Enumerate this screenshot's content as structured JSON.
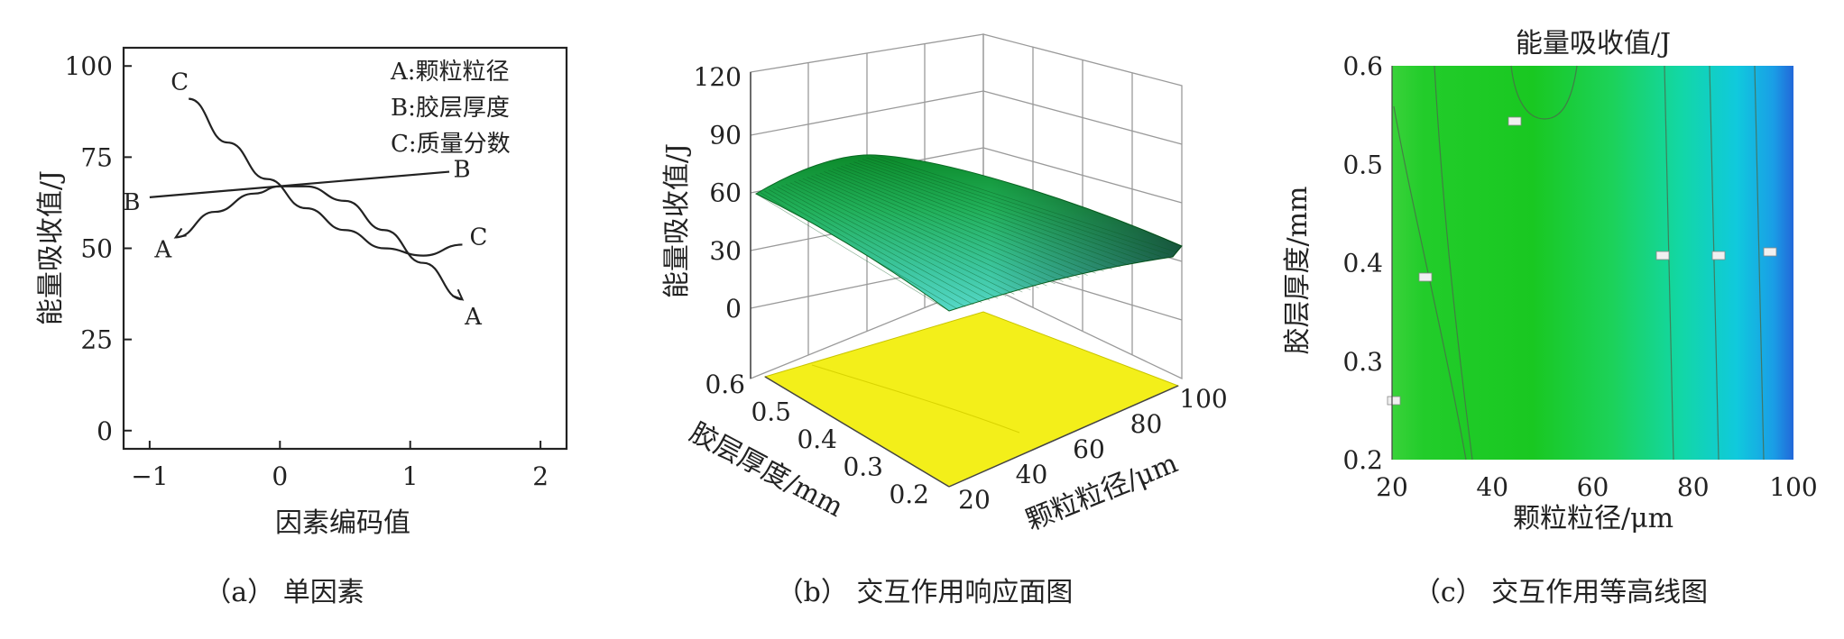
{
  "chart_data": [
    {
      "type": "line",
      "xlabel": "因素编码值",
      "ylabel": "能量吸收值/J",
      "xlim": [
        -1.2,
        2.2
      ],
      "ylim": [
        -5,
        105
      ],
      "xticks": [
        "−1",
        "0",
        "1",
        "2"
      ],
      "yticks": [
        "0",
        "25",
        "50",
        "75",
        "100"
      ],
      "legend": [
        "A:颗粒粒径",
        "B:胶层厚度",
        "C:质量分数"
      ],
      "series": [
        {
          "name": "A",
          "x": [
            -0.8,
            -0.5,
            -0.2,
            0.0,
            0.2,
            0.5,
            0.8,
            1.1,
            1.4
          ],
          "y": [
            53,
            60,
            65,
            67,
            67,
            63,
            55,
            46,
            36
          ],
          "end_labels": [
            "A",
            "A"
          ]
        },
        {
          "name": "B",
          "x": [
            -1.0,
            1.3
          ],
          "y": [
            64,
            71
          ],
          "end_labels": [
            "B",
            "B"
          ]
        },
        {
          "name": "C",
          "x": [
            -0.7,
            -0.4,
            -0.1,
            0.2,
            0.5,
            0.8,
            1.1,
            1.4
          ],
          "y": [
            91,
            79,
            69,
            61,
            55,
            50,
            48,
            51
          ],
          "end_labels": [
            "C",
            "C"
          ]
        }
      ],
      "caption": "（a） 单因素"
    },
    {
      "type": "surface",
      "zlabel": "能量吸收值/J",
      "ylabel": "胶层厚度/mm",
      "xlabel": "颗粒粒径/μm",
      "zticks": [
        "0",
        "30",
        "60",
        "90",
        "120"
      ],
      "yticks": [
        "0.2",
        "0.3",
        "0.4",
        "0.5",
        "0.6"
      ],
      "xticks": [
        "20",
        "40",
        "60",
        "80",
        "100"
      ],
      "caption": "（b） 交互作用响应面图"
    },
    {
      "type": "contour",
      "title": "能量吸收值/J",
      "xlabel": "颗粒粒径/μm",
      "ylabel": "胶层厚度/mm",
      "xlim": [
        20,
        100
      ],
      "ylim": [
        0.2,
        0.6
      ],
      "xticks": [
        "20",
        "40",
        "60",
        "80",
        "100"
      ],
      "yticks": [
        "0.2",
        "0.3",
        "0.4",
        "0.5",
        "0.6"
      ],
      "caption": "（c） 交互作用等高线图"
    }
  ]
}
